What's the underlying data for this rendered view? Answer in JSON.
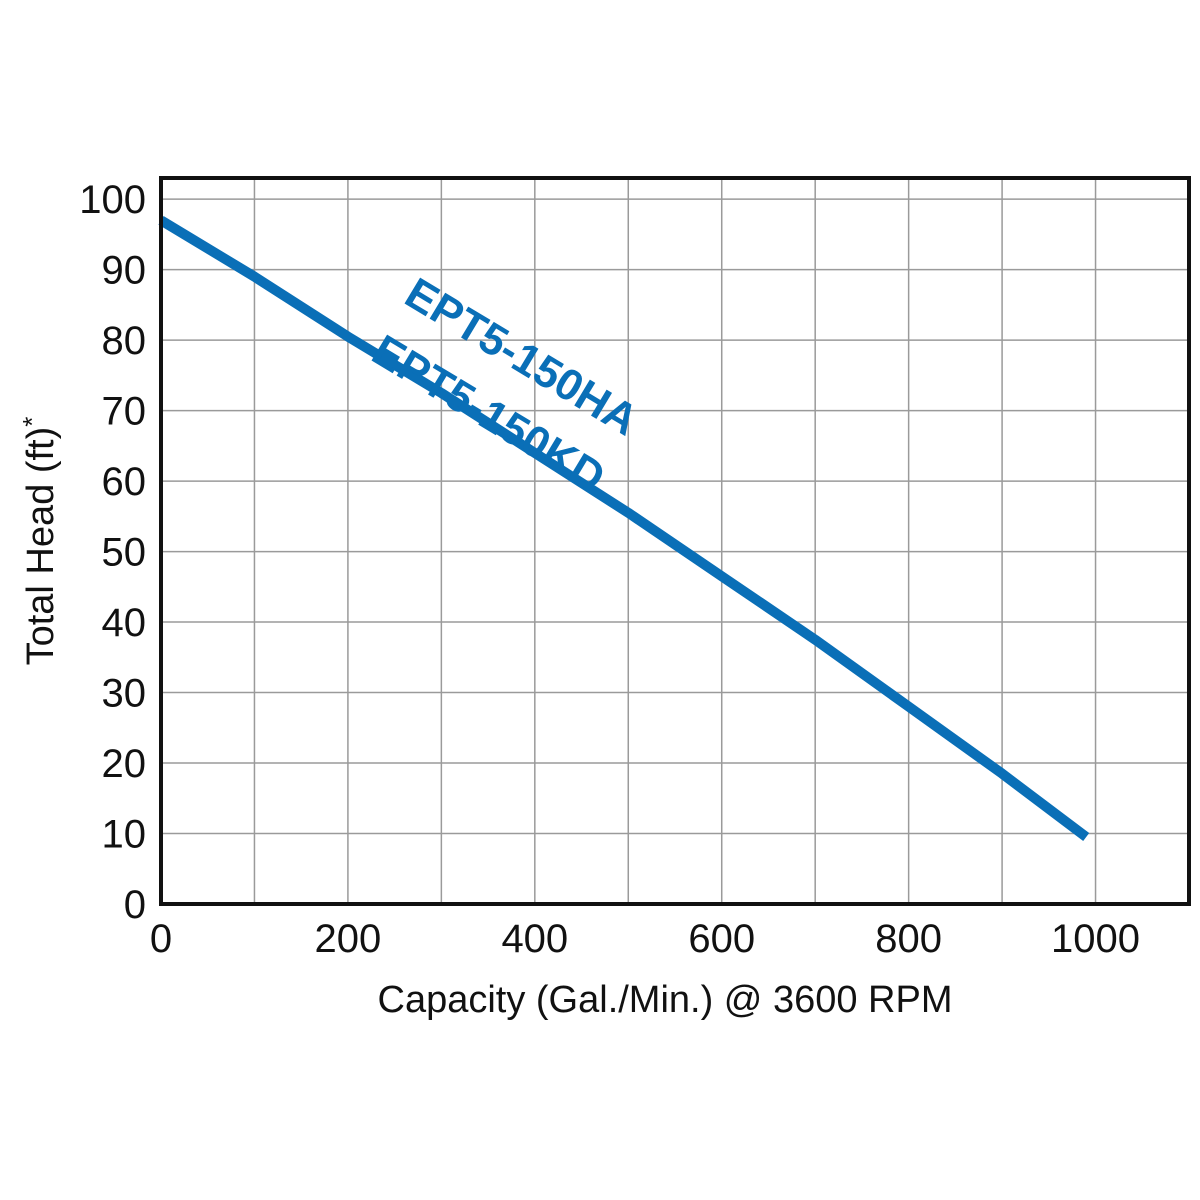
{
  "chart_data": {
    "type": "line",
    "title": "",
    "xlabel": "Capacity (Gal./Min.) @ 3600 RPM",
    "ylabel": "Total Head (ft)",
    "ylabel_suffix": "*",
    "xlim": [
      0,
      1100
    ],
    "ylim": [
      0,
      103
    ],
    "grid": true,
    "x_grid_step": 100,
    "y_grid_step": 10,
    "x_ticks": [
      0,
      200,
      400,
      600,
      800,
      1000
    ],
    "y_ticks": [
      0,
      10,
      20,
      30,
      40,
      50,
      60,
      70,
      80,
      90,
      100
    ],
    "series_color": "#0a6fb7",
    "series": [
      {
        "labels": [
          "EPT5-150HA",
          "EPT5-150KD"
        ],
        "points": [
          {
            "x": 0,
            "y": 97
          },
          {
            "x": 100,
            "y": 89
          },
          {
            "x": 200,
            "y": 80.5
          },
          {
            "x": 300,
            "y": 72.5
          },
          {
            "x": 400,
            "y": 64
          },
          {
            "x": 500,
            "y": 55.5
          },
          {
            "x": 600,
            "y": 46.5
          },
          {
            "x": 700,
            "y": 37.5
          },
          {
            "x": 800,
            "y": 28
          },
          {
            "x": 900,
            "y": 18.5
          },
          {
            "x": 990,
            "y": 9.5
          }
        ]
      }
    ]
  }
}
